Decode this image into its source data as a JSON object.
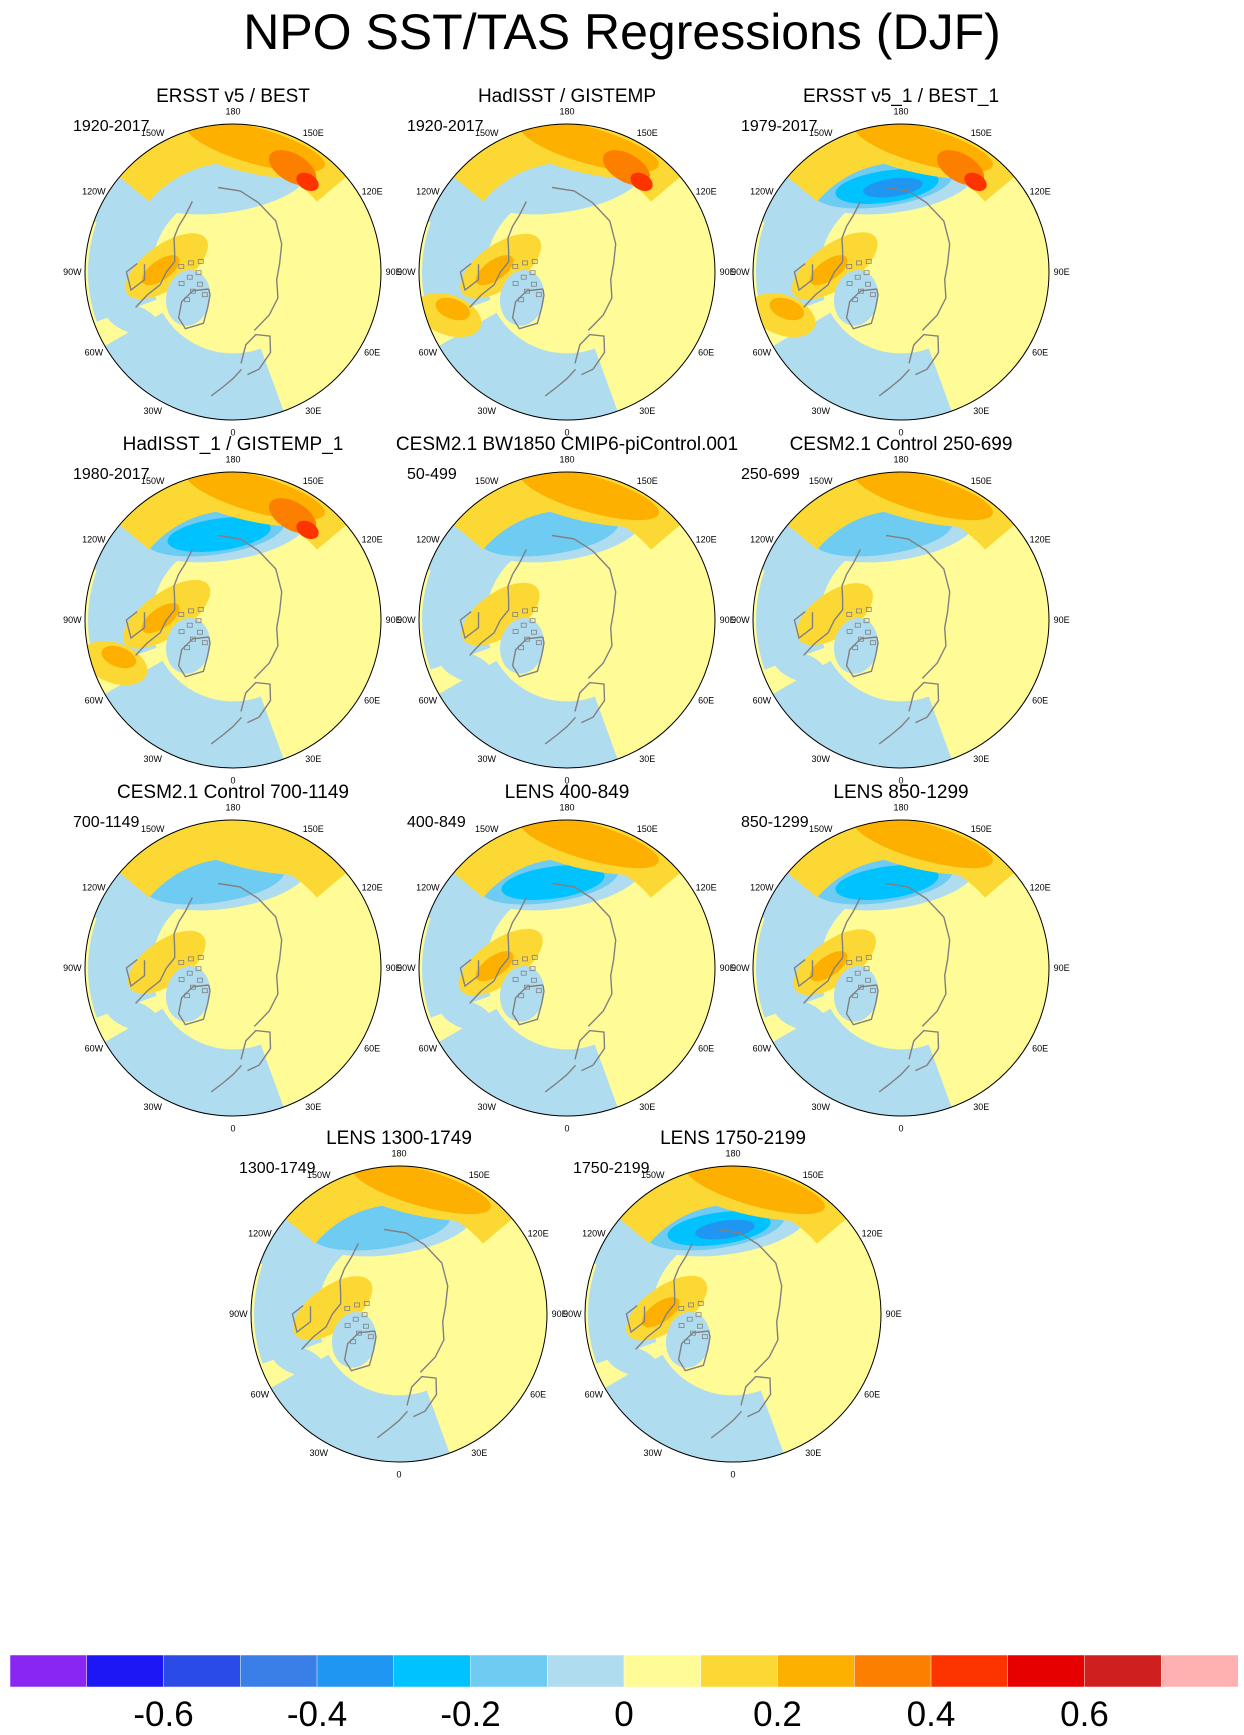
{
  "title": "NPO SST/TAS Regressions (DJF)",
  "lon_labels": [
    "180",
    "150E",
    "120E",
    "90E",
    "60E",
    "30E",
    "0",
    "30W",
    "60W",
    "90W",
    "120W",
    "150W"
  ],
  "panels": [
    {
      "title": "ERSST v5 / BEST",
      "period": "1920-2017",
      "ridge": 0.95,
      "trough": 0.25,
      "arctic": 0.4,
      "atl": -0.3,
      "blue_belt": 0.45
    },
    {
      "title": "HadISST / GISTEMP",
      "period": "1920-2017",
      "ridge": 0.9,
      "trough": 0.15,
      "arctic": 0.35,
      "atl": 0.4,
      "blue_belt": 0.4
    },
    {
      "title": "ERSST v5_1 / BEST_1",
      "period": "1979-2017",
      "ridge": 0.8,
      "trough": 0.8,
      "arctic": 0.5,
      "atl": 0.3,
      "blue_belt": 0.3
    },
    {
      "title": "HadISST_1 / GISTEMP_1",
      "period": "1980-2017",
      "ridge": 0.85,
      "trough": 0.7,
      "arctic": 0.55,
      "atl": 0.5,
      "blue_belt": 0.35
    },
    {
      "title": "CESM2.1 BW1850 CMIP6-piControl.001",
      "period": "50-499",
      "ridge": 0.55,
      "trough": 0.45,
      "arctic": 0.25,
      "atl": -0.2,
      "blue_belt": 0.75
    },
    {
      "title": "CESM2.1 Control 250-699",
      "period": "250-699",
      "ridge": 0.55,
      "trough": 0.45,
      "arctic": 0.2,
      "atl": -0.2,
      "blue_belt": 0.7
    },
    {
      "title": "CESM2.1 Control 700-1149",
      "period": "700-1149",
      "ridge": 0.45,
      "trough": 0.5,
      "arctic": 0.25,
      "atl": -0.15,
      "blue_belt": 0.7
    },
    {
      "title": "LENS 400-849",
      "period": "400-849",
      "ridge": 0.55,
      "trough": 0.7,
      "arctic": 0.45,
      "atl": -0.2,
      "blue_belt": 0.75
    },
    {
      "title": "LENS 850-1299",
      "period": "850-1299",
      "ridge": 0.55,
      "trough": 0.65,
      "arctic": 0.4,
      "atl": -0.2,
      "blue_belt": 0.75
    },
    {
      "title": "LENS 1300-1749",
      "period": "1300-1749",
      "ridge": 0.55,
      "trough": 0.55,
      "arctic": 0.3,
      "atl": -0.15,
      "blue_belt": 0.75
    },
    {
      "title": "LENS 1750-2199",
      "period": "1750-2199",
      "ridge": 0.6,
      "trough": 0.75,
      "arctic": 0.35,
      "atl": -0.2,
      "blue_belt": 0.75
    }
  ],
  "colorbar": {
    "colors": [
      "#8a26f2",
      "#1e17f5",
      "#2a4be8",
      "#3a7ee8",
      "#1e96f2",
      "#00c2ff",
      "#6ecbf2",
      "#b0dcf0",
      "#fffb96",
      "#fcd835",
      "#fdb000",
      "#fd7f00",
      "#fd3300",
      "#e60000",
      "#d01f1f",
      "#ffb1b1"
    ],
    "tick_labels": [
      "-0.6",
      "-0.4",
      "-0.2",
      "0",
      "0.2",
      "0.4",
      "0.6"
    ]
  }
}
